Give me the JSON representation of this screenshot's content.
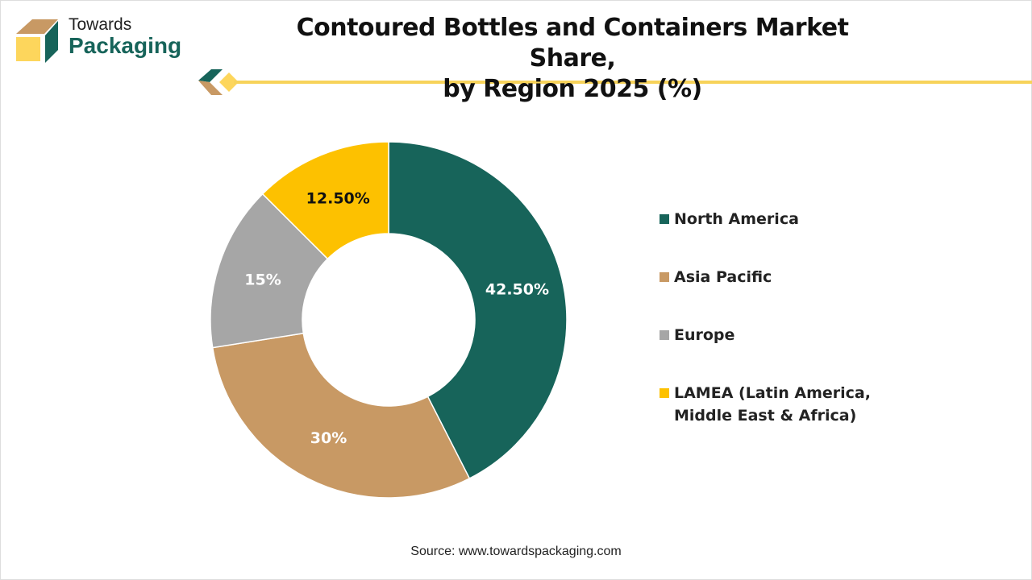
{
  "brand": {
    "line1": "Towards",
    "line2": "Packaging"
  },
  "title_lines": [
    "Contoured Bottles and Containers Market Share,",
    "by Region 2025 (%)"
  ],
  "source": "Source: www.towardspackaging.com",
  "chart_data": {
    "type": "pie",
    "donut": true,
    "title": "Contoured Bottles and Containers Market Share, by Region 2025 (%)",
    "categories": [
      "North America",
      "Asia Pacific",
      "Europe",
      "LAMEA (Latin America, Middle East & Africa)"
    ],
    "legend_lines": [
      [
        "North America"
      ],
      [
        "Asia Pacific"
      ],
      [
        "Europe"
      ],
      [
        "LAMEA (Latin America,",
        "Middle East & Africa)"
      ]
    ],
    "values": [
      42.5,
      30,
      15,
      12.5
    ],
    "labels": [
      "42.50%",
      "30%",
      "15%",
      "12.50%"
    ],
    "colors": [
      "#17645a",
      "#c89964",
      "#a6a6a6",
      "#fdc100"
    ],
    "label_colors": [
      "#ffffff",
      "#ffffff",
      "#ffffff",
      "#111111"
    ],
    "legend_position": "right"
  }
}
